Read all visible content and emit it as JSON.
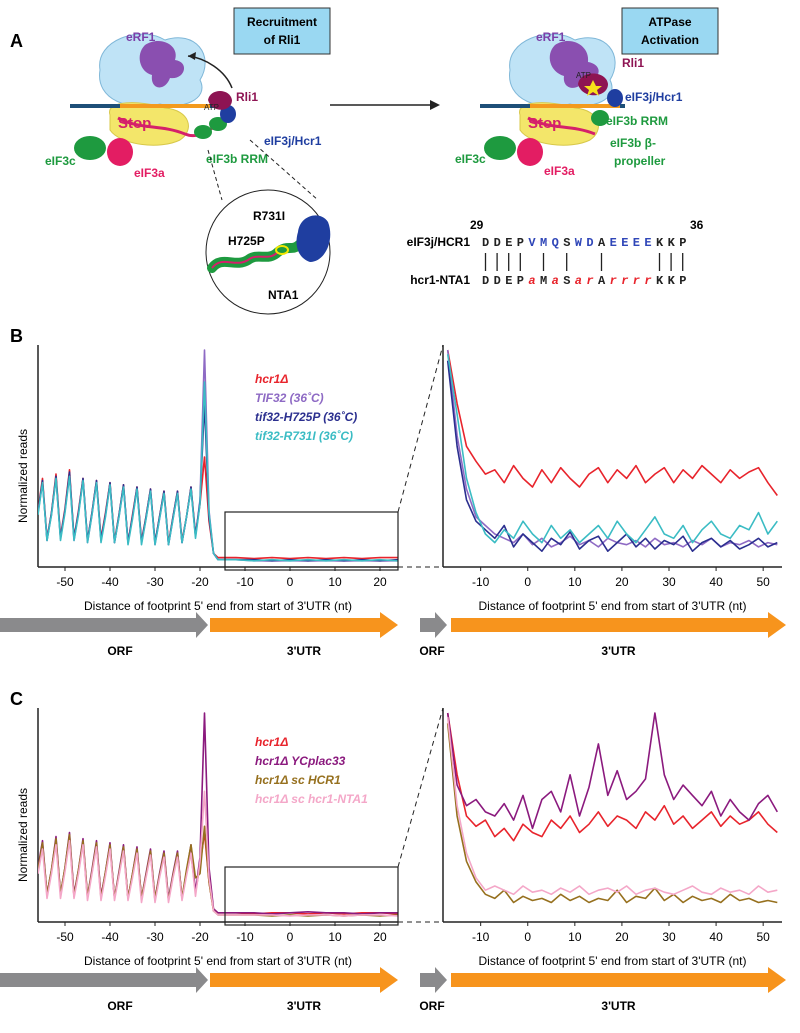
{
  "panel_a": {
    "label": "A",
    "step_1": [
      "Recruitment",
      "of Rli1"
    ],
    "step_2": [
      "ATPase",
      "Activation"
    ],
    "left": {
      "erf1": "eRF1",
      "rli1": "Rli1",
      "atp": "ATP",
      "stop": "Stop",
      "eif3j": "eIF3j/Hcr1",
      "eif3b": "eIF3b RRM",
      "eif3c": "eIF3c",
      "eif3a": "eIF3a"
    },
    "inset": {
      "h725p": "H725P",
      "r731i": "R731I",
      "nta1": "NTA1"
    },
    "right": {
      "erf1": "eRF1",
      "rli1": "Rli1",
      "atp": "ATP",
      "stop": "Stop",
      "eif3j": "eIF3j/Hcr1",
      "eif3b": "eIF3b RRM",
      "eif3b_propeller": [
        "eIF3b β-",
        "propeller"
      ],
      "eif3c": "eIF3c",
      "eif3a": "eIF3a"
    },
    "alignment": {
      "start": 29,
      "end": 36,
      "rows": [
        {
          "name": "eIF3j/HCR1",
          "seq": "DDEPVMQSWDAEEEEKKP"
        },
        {
          "name": "hcr1-NTA1",
          "seq": "DDEPaMaSarArrrrKKP"
        }
      ]
    }
  },
  "chart_data": [
    {
      "type": "line",
      "panel": "B",
      "y_label": "Normalized reads",
      "x_label": "Distance of footprint 5' end from start of 3'UTR (nt)",
      "arrow_labels": [
        "ORF",
        "3'UTR"
      ],
      "xlim": [
        -56,
        24
      ],
      "xticks": [
        -50,
        -40,
        -30,
        -20,
        -10,
        0,
        10,
        20
      ],
      "ylim": [
        0,
        100
      ],
      "x": [
        -56,
        -55,
        -54,
        -53,
        -52,
        -51,
        -50,
        -49,
        -48,
        -47,
        -46,
        -45,
        -44,
        -43,
        -42,
        -41,
        -40,
        -39,
        -38,
        -37,
        -36,
        -35,
        -34,
        -33,
        -32,
        -31,
        -30,
        -29,
        -28,
        -27,
        -26,
        -25,
        -24,
        -23,
        -22,
        -21,
        -20,
        -19,
        -18,
        -17,
        -16,
        -12,
        -8,
        -4,
        0,
        4,
        8,
        12,
        16,
        20,
        24
      ],
      "series": [
        {
          "name": "hcr1Δ",
          "color": "#e8242c",
          "values": [
            25,
            40,
            12,
            24,
            42,
            13,
            26,
            44,
            12,
            25,
            40,
            11,
            24,
            39,
            12,
            24,
            38,
            11,
            23,
            37,
            10,
            23,
            36,
            11,
            22,
            35,
            10,
            22,
            34,
            10,
            22,
            34,
            11,
            22,
            36,
            14,
            28,
            50,
            20,
            5,
            3,
            3,
            2.5,
            3,
            2.5,
            3,
            2.5,
            3,
            2.5,
            3,
            3
          ]
        },
        {
          "name": "TIF32 (36˚C)",
          "color": "#8e6ac4",
          "values": [
            24,
            38,
            12,
            23,
            40,
            12,
            25,
            42,
            11,
            24,
            39,
            10,
            23,
            38,
            11,
            23,
            37,
            10,
            22,
            36,
            10,
            22,
            35,
            10,
            21,
            34,
            9,
            21,
            33,
            9,
            21,
            33,
            10,
            22,
            35,
            13,
            30,
            100,
            25,
            5,
            2,
            2,
            1.5,
            1.5,
            1.5,
            1.5,
            1.5,
            1.5,
            1.5,
            1.5,
            1.5
          ]
        },
        {
          "name": "tif32-H725P (36˚C)",
          "color": "#2b2f8f",
          "values": [
            24,
            39,
            11,
            24,
            41,
            12,
            25,
            43,
            12,
            24,
            40,
            11,
            24,
            39,
            11,
            23,
            38,
            10,
            23,
            37,
            10,
            22,
            36,
            10,
            22,
            35,
            10,
            22,
            34,
            9,
            22,
            34,
            10,
            22,
            36,
            13,
            29,
            75,
            22,
            5,
            2,
            2,
            2,
            1.5,
            2,
            1.5,
            2,
            1.5,
            2,
            1.5,
            2
          ]
        },
        {
          "name": "tif32-R731I (36˚C)",
          "color": "#3bbcc4",
          "values": [
            23,
            38,
            11,
            23,
            40,
            11,
            24,
            41,
            11,
            23,
            39,
            10,
            23,
            38,
            10,
            22,
            37,
            10,
            22,
            36,
            9,
            21,
            35,
            9,
            21,
            34,
            9,
            21,
            33,
            9,
            21,
            33,
            10,
            22,
            35,
            12,
            28,
            85,
            24,
            5,
            2,
            2,
            1.5,
            2,
            1.5,
            2,
            1.5,
            2,
            1.5,
            2,
            1.5
          ]
        }
      ]
    },
    {
      "type": "line",
      "x_label": "Distance of footprint 5' end from start of 3'UTR (nt)",
      "arrow_labels": [
        "ORF",
        "3'UTR"
      ],
      "xlim": [
        -18,
        54
      ],
      "xticks": [
        -10,
        0,
        10,
        20,
        30,
        40,
        50
      ],
      "ylim": [
        0,
        100
      ],
      "x": [
        -17,
        -15,
        -13,
        -11,
        -9,
        -7,
        -5,
        -3,
        -1,
        1,
        3,
        5,
        7,
        9,
        11,
        13,
        15,
        17,
        19,
        21,
        23,
        25,
        27,
        29,
        31,
        33,
        35,
        37,
        39,
        41,
        43,
        45,
        47,
        49,
        51,
        53
      ],
      "series": [
        {
          "color": "#e8242c",
          "values": [
            100,
            75,
            55,
            48,
            42,
            44,
            38,
            46,
            40,
            36,
            44,
            38,
            45,
            40,
            36,
            42,
            45,
            38,
            44,
            40,
            46,
            38,
            42,
            45,
            38,
            44,
            40,
            46,
            42,
            38,
            44,
            40,
            43,
            45,
            38,
            32
          ]
        },
        {
          "color": "#8e6ac4",
          "values": [
            100,
            60,
            35,
            22,
            18,
            14,
            12,
            10,
            14,
            9,
            12,
            8,
            10,
            13,
            9,
            11,
            8,
            12,
            10,
            9,
            11,
            8,
            12,
            9,
            10,
            8,
            11,
            9,
            12,
            8,
            10,
            9,
            11,
            8,
            10,
            9
          ]
        },
        {
          "color": "#2b2f8f",
          "values": [
            95,
            55,
            30,
            20,
            16,
            12,
            18,
            8,
            14,
            10,
            6,
            12,
            9,
            15,
            7,
            11,
            13,
            6,
            10,
            14,
            8,
            12,
            7,
            11,
            9,
            13,
            6,
            10,
            12,
            8,
            11,
            7,
            9,
            12,
            8,
            10
          ]
        },
        {
          "color": "#3bbcc4",
          "values": [
            98,
            70,
            40,
            24,
            14,
            10,
            16,
            12,
            20,
            14,
            10,
            18,
            12,
            16,
            10,
            14,
            18,
            12,
            20,
            14,
            10,
            16,
            22,
            14,
            12,
            18,
            10,
            16,
            20,
            14,
            12,
            18,
            16,
            24,
            14,
            20
          ]
        }
      ]
    },
    {
      "type": "line",
      "panel": "C",
      "y_label": "Normalized reads",
      "x_label": "Distance of footprint 5' end from start of 3'UTR (nt)",
      "arrow_labels": [
        "ORF",
        "3'UTR"
      ],
      "xlim": [
        -56,
        24
      ],
      "xticks": [
        -50,
        -40,
        -30,
        -20,
        -10,
        0,
        10,
        20
      ],
      "ylim": [
        0,
        100
      ],
      "x": [
        -56,
        -55,
        -54,
        -53,
        -52,
        -51,
        -50,
        -49,
        -48,
        -47,
        -46,
        -45,
        -44,
        -43,
        -42,
        -41,
        -40,
        -39,
        -38,
        -37,
        -36,
        -35,
        -34,
        -33,
        -32,
        -31,
        -30,
        -29,
        -28,
        -27,
        -26,
        -25,
        -24,
        -23,
        -22,
        -21,
        -20,
        -19,
        -18,
        -17,
        -16,
        -12,
        -8,
        -4,
        0,
        4,
        8,
        12,
        16,
        20,
        24
      ],
      "series": [
        {
          "name": "hcr1Δ",
          "color": "#e8242c",
          "values": [
            24,
            36,
            12,
            23,
            38,
            12,
            24,
            40,
            11,
            23,
            37,
            10,
            23,
            36,
            11,
            22,
            35,
            10,
            22,
            34,
            10,
            21,
            33,
            10,
            21,
            32,
            9,
            21,
            32,
            9,
            21,
            32,
            10,
            22,
            32,
            13,
            26,
            42,
            18,
            4,
            3,
            3,
            2.5,
            3,
            3,
            2.5,
            3,
            2.5,
            3,
            3,
            2.5
          ]
        },
        {
          "name": "hcr1Δ YCplac33",
          "color": "#8b1a7e",
          "values": [
            25,
            38,
            12,
            24,
            40,
            12,
            25,
            42,
            12,
            24,
            39,
            11,
            24,
            38,
            11,
            23,
            37,
            10,
            23,
            36,
            10,
            22,
            35,
            10,
            22,
            34,
            10,
            22,
            33,
            10,
            22,
            33,
            10,
            23,
            36,
            13,
            30,
            100,
            25,
            5,
            3,
            3,
            3,
            2.5,
            3,
            3.5,
            3,
            3,
            2.5,
            3,
            3
          ]
        },
        {
          "name": "hcr1Δ sc HCR1",
          "color": "#96701e",
          "values": [
            24,
            37,
            12,
            24,
            39,
            12,
            25,
            41,
            11,
            24,
            38,
            11,
            23,
            37,
            10,
            23,
            36,
            10,
            22,
            35,
            10,
            22,
            34,
            10,
            21,
            33,
            10,
            21,
            32,
            9,
            21,
            32,
            10,
            24,
            36,
            20,
            22,
            45,
            18,
            4,
            2,
            2,
            2,
            1.5,
            2,
            1.5,
            2,
            1.5,
            2,
            1.5,
            2
          ]
        },
        {
          "name": "hcr1Δ sc hcr1-NTA1",
          "color": "#f4a7c8",
          "values": [
            22,
            34,
            10,
            22,
            36,
            10,
            23,
            38,
            10,
            22,
            36,
            9,
            22,
            35,
            9,
            21,
            34,
            9,
            21,
            33,
            9,
            20,
            32,
            8,
            20,
            31,
            8,
            20,
            30,
            8,
            20,
            30,
            9,
            21,
            32,
            11,
            28,
            62,
            20,
            4,
            2,
            2,
            2,
            2,
            1.5,
            2,
            2,
            1.5,
            2,
            2,
            1.5
          ]
        }
      ]
    },
    {
      "type": "line",
      "x_label": "Distance of footprint 5' end from start of 3'UTR (nt)",
      "arrow_labels": [
        "ORF",
        "3'UTR"
      ],
      "xlim": [
        -18,
        54
      ],
      "xticks": [
        -10,
        0,
        10,
        20,
        30,
        40,
        50
      ],
      "ylim": [
        0,
        100
      ],
      "x": [
        -17,
        -15,
        -13,
        -11,
        -9,
        -7,
        -5,
        -3,
        -1,
        1,
        3,
        5,
        7,
        9,
        11,
        13,
        15,
        17,
        19,
        21,
        23,
        25,
        27,
        29,
        31,
        33,
        35,
        37,
        39,
        41,
        43,
        45,
        47,
        49,
        51,
        53
      ],
      "series": [
        {
          "color": "#e8242c",
          "values": [
            100,
            70,
            50,
            45,
            48,
            40,
            44,
            38,
            46,
            42,
            40,
            48,
            44,
            50,
            42,
            46,
            52,
            45,
            50,
            48,
            44,
            52,
            48,
            55,
            46,
            50,
            44,
            48,
            52,
            45,
            50,
            46,
            48,
            52,
            46,
            42
          ]
        },
        {
          "color": "#8b1a7e",
          "values": [
            100,
            65,
            55,
            58,
            52,
            50,
            56,
            48,
            60,
            44,
            58,
            62,
            52,
            70,
            50,
            64,
            85,
            60,
            72,
            58,
            62,
            68,
            100,
            70,
            58,
            65,
            60,
            55,
            62,
            50,
            58,
            52,
            48,
            56,
            60,
            52
          ]
        },
        {
          "color": "#96701e",
          "values": [
            95,
            50,
            28,
            18,
            12,
            10,
            14,
            8,
            11,
            9,
            10,
            8,
            12,
            9,
            11,
            8,
            10,
            9,
            14,
            8,
            11,
            10,
            15,
            9,
            12,
            8,
            11,
            9,
            10,
            8,
            12,
            9,
            10,
            8,
            9,
            8
          ]
        },
        {
          "color": "#f4a7c8",
          "values": [
            98,
            55,
            32,
            20,
            14,
            16,
            14,
            12,
            16,
            13,
            14,
            12,
            15,
            13,
            16,
            12,
            14,
            15,
            13,
            16,
            12,
            14,
            15,
            13,
            12,
            14,
            16,
            13,
            12,
            15,
            13,
            14,
            12,
            16,
            13,
            14
          ]
        }
      ]
    }
  ]
}
